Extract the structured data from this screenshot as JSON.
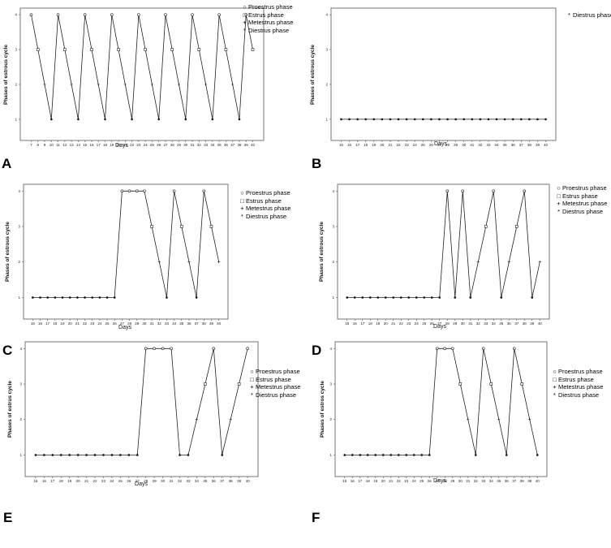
{
  "chart_data": [
    {
      "panel": "A",
      "type": "line",
      "xlabel": "Days",
      "ylabel": "Phases of estrous cycle",
      "x": [
        7,
        8,
        9,
        10,
        11,
        12,
        13,
        14,
        15,
        16,
        17,
        18,
        19,
        20,
        21,
        22,
        23,
        24,
        25,
        26,
        27,
        28,
        29,
        30,
        31,
        32,
        33,
        34,
        35,
        36,
        37,
        38,
        39,
        40
      ],
      "values": [
        4,
        3,
        2,
        1,
        4,
        3,
        2,
        1,
        4,
        3,
        2,
        1,
        4,
        3,
        2,
        1,
        4,
        3,
        2,
        1,
        4,
        3,
        2,
        1,
        4,
        3,
        2,
        1,
        4,
        3,
        2,
        1,
        4,
        3
      ],
      "yticks": [
        1,
        2,
        3,
        4
      ],
      "legend": [
        {
          "symbol": "○",
          "label": "Proestrus phase"
        },
        {
          "symbol": "□",
          "label": "Estrus phase"
        },
        {
          "symbol": "+",
          "label": "Metestrus phase"
        },
        {
          "symbol": "*",
          "label": "Diestrus phase"
        }
      ]
    },
    {
      "panel": "B",
      "type": "line",
      "xlabel": "Days",
      "ylabel": "Phases of estrous cycle",
      "x": [
        15,
        16,
        17,
        18,
        19,
        20,
        21,
        22,
        23,
        24,
        25,
        26,
        27,
        28,
        29,
        30,
        31,
        32,
        33,
        34,
        35,
        36,
        37,
        38,
        39,
        40
      ],
      "values": [
        1,
        1,
        1,
        1,
        1,
        1,
        1,
        1,
        1,
        1,
        1,
        1,
        1,
        1,
        1,
        1,
        1,
        1,
        1,
        1,
        1,
        1,
        1,
        1,
        1,
        1
      ],
      "yticks": [
        1,
        2,
        3,
        4
      ],
      "legend": [
        {
          "symbol": "*",
          "label": "Diestrus phase"
        }
      ]
    },
    {
      "panel": "C",
      "type": "line",
      "xlabel": "Days",
      "ylabel": "Phases of estrous cycle",
      "x": [
        15,
        16,
        17,
        18,
        19,
        20,
        21,
        22,
        23,
        24,
        25,
        26,
        27,
        28,
        29,
        30,
        31,
        32,
        33,
        34,
        35,
        36,
        37,
        38,
        39,
        40
      ],
      "values": [
        1,
        1,
        1,
        1,
        1,
        1,
        1,
        1,
        1,
        1,
        1,
        1,
        4,
        4,
        4,
        4,
        3,
        2,
        1,
        4,
        3,
        2,
        1,
        4,
        3,
        2
      ],
      "yticks": [
        1,
        2,
        3,
        4
      ],
      "legend": [
        {
          "symbol": "○",
          "label": "Proestrus phase"
        },
        {
          "symbol": "□",
          "label": "Estrus phase"
        },
        {
          "symbol": "+",
          "label": "Metestrus phase"
        },
        {
          "symbol": "*",
          "label": "Diestrus phase"
        }
      ]
    },
    {
      "panel": "D",
      "type": "line",
      "xlabel": "Days",
      "ylabel": "Phases of estrous cycle",
      "x": [
        15,
        16,
        17,
        18,
        19,
        20,
        21,
        22,
        23,
        24,
        25,
        26,
        27,
        28,
        29,
        30,
        31,
        32,
        33,
        34,
        35,
        36,
        37,
        38,
        39,
        40
      ],
      "values": [
        1,
        1,
        1,
        1,
        1,
        1,
        1,
        1,
        1,
        1,
        1,
        1,
        1,
        4,
        1,
        4,
        1,
        2,
        3,
        4,
        1,
        2,
        3,
        4,
        1,
        2
      ],
      "yticks": [
        1,
        2,
        3,
        4
      ],
      "legend": [
        {
          "symbol": "○",
          "label": "Proestrus phase"
        },
        {
          "symbol": "□",
          "label": "Estrus phase"
        },
        {
          "symbol": "+",
          "label": "Metestrus phase"
        },
        {
          "symbol": "*",
          "label": "Diestrus phase"
        }
      ]
    },
    {
      "panel": "E",
      "type": "line",
      "xlabel": "Days",
      "ylabel": "Phases of estrus cycle",
      "x": [
        15,
        16,
        17,
        18,
        19,
        20,
        21,
        22,
        23,
        24,
        25,
        26,
        27,
        28,
        29,
        30,
        31,
        32,
        33,
        34,
        35,
        36,
        37,
        38,
        39,
        40
      ],
      "values": [
        1,
        1,
        1,
        1,
        1,
        1,
        1,
        1,
        1,
        1,
        1,
        1,
        1,
        4,
        4,
        4,
        4,
        1,
        1,
        2,
        3,
        4,
        1,
        2,
        3,
        4
      ],
      "yticks": [
        1,
        2,
        3,
        4
      ],
      "legend": [
        {
          "symbol": "○",
          "label": "Proestrus phase"
        },
        {
          "symbol": "□",
          "label": "Estrus phase"
        },
        {
          "symbol": "+",
          "label": "Metestrus phase"
        },
        {
          "symbol": "*",
          "label": "Diestrus phase"
        }
      ]
    },
    {
      "panel": "F",
      "type": "line",
      "xlabel": "Days",
      "ylabel": "Phases of estros cycle",
      "x": [
        15,
        16,
        17,
        18,
        19,
        20,
        21,
        22,
        23,
        24,
        25,
        26,
        27,
        28,
        29,
        30,
        31,
        32,
        33,
        34,
        35,
        36,
        37,
        38,
        39,
        40
      ],
      "values": [
        1,
        1,
        1,
        1,
        1,
        1,
        1,
        1,
        1,
        1,
        1,
        1,
        4,
        4,
        4,
        3,
        2,
        1,
        4,
        3,
        2,
        1,
        4,
        3,
        2,
        1
      ],
      "yticks": [
        1,
        2,
        3,
        4
      ],
      "legend": [
        {
          "symbol": "○",
          "label": "Proestrus phase"
        },
        {
          "symbol": "□",
          "label": "Estrus phase"
        },
        {
          "symbol": "+",
          "label": "Metestrus phase"
        },
        {
          "symbol": "*",
          "label": "Diestrus phase"
        }
      ]
    }
  ]
}
